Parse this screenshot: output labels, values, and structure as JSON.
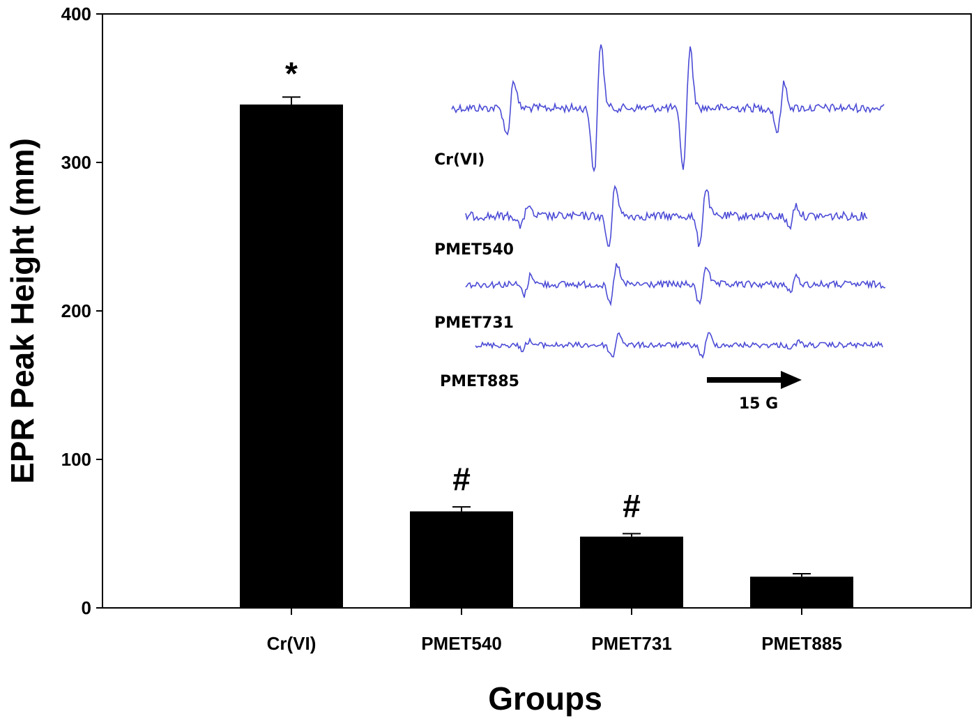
{
  "chart_data": {
    "type": "bar",
    "xlabel": "Groups",
    "ylabel": "EPR Peak Height (mm)",
    "ylim": [
      0,
      400
    ],
    "yticks": [
      "0",
      "100",
      "200",
      "300",
      "400"
    ],
    "categories": [
      "Cr(VI)",
      "PMET540",
      "PMET731",
      "PMET885"
    ],
    "values": [
      339,
      65,
      48,
      21
    ],
    "errors": [
      5,
      3,
      2,
      2
    ],
    "significance": [
      "*",
      "#",
      "#",
      ""
    ],
    "bar_color": "#000000",
    "grid": false,
    "inset": {
      "description_type": "epr-spectra",
      "trace_color": "#4b4bd6",
      "labels": [
        "Cr(VI)",
        "PMET540",
        "PMET731",
        "PMET885"
      ],
      "scale_bar_label": "15 G"
    }
  }
}
